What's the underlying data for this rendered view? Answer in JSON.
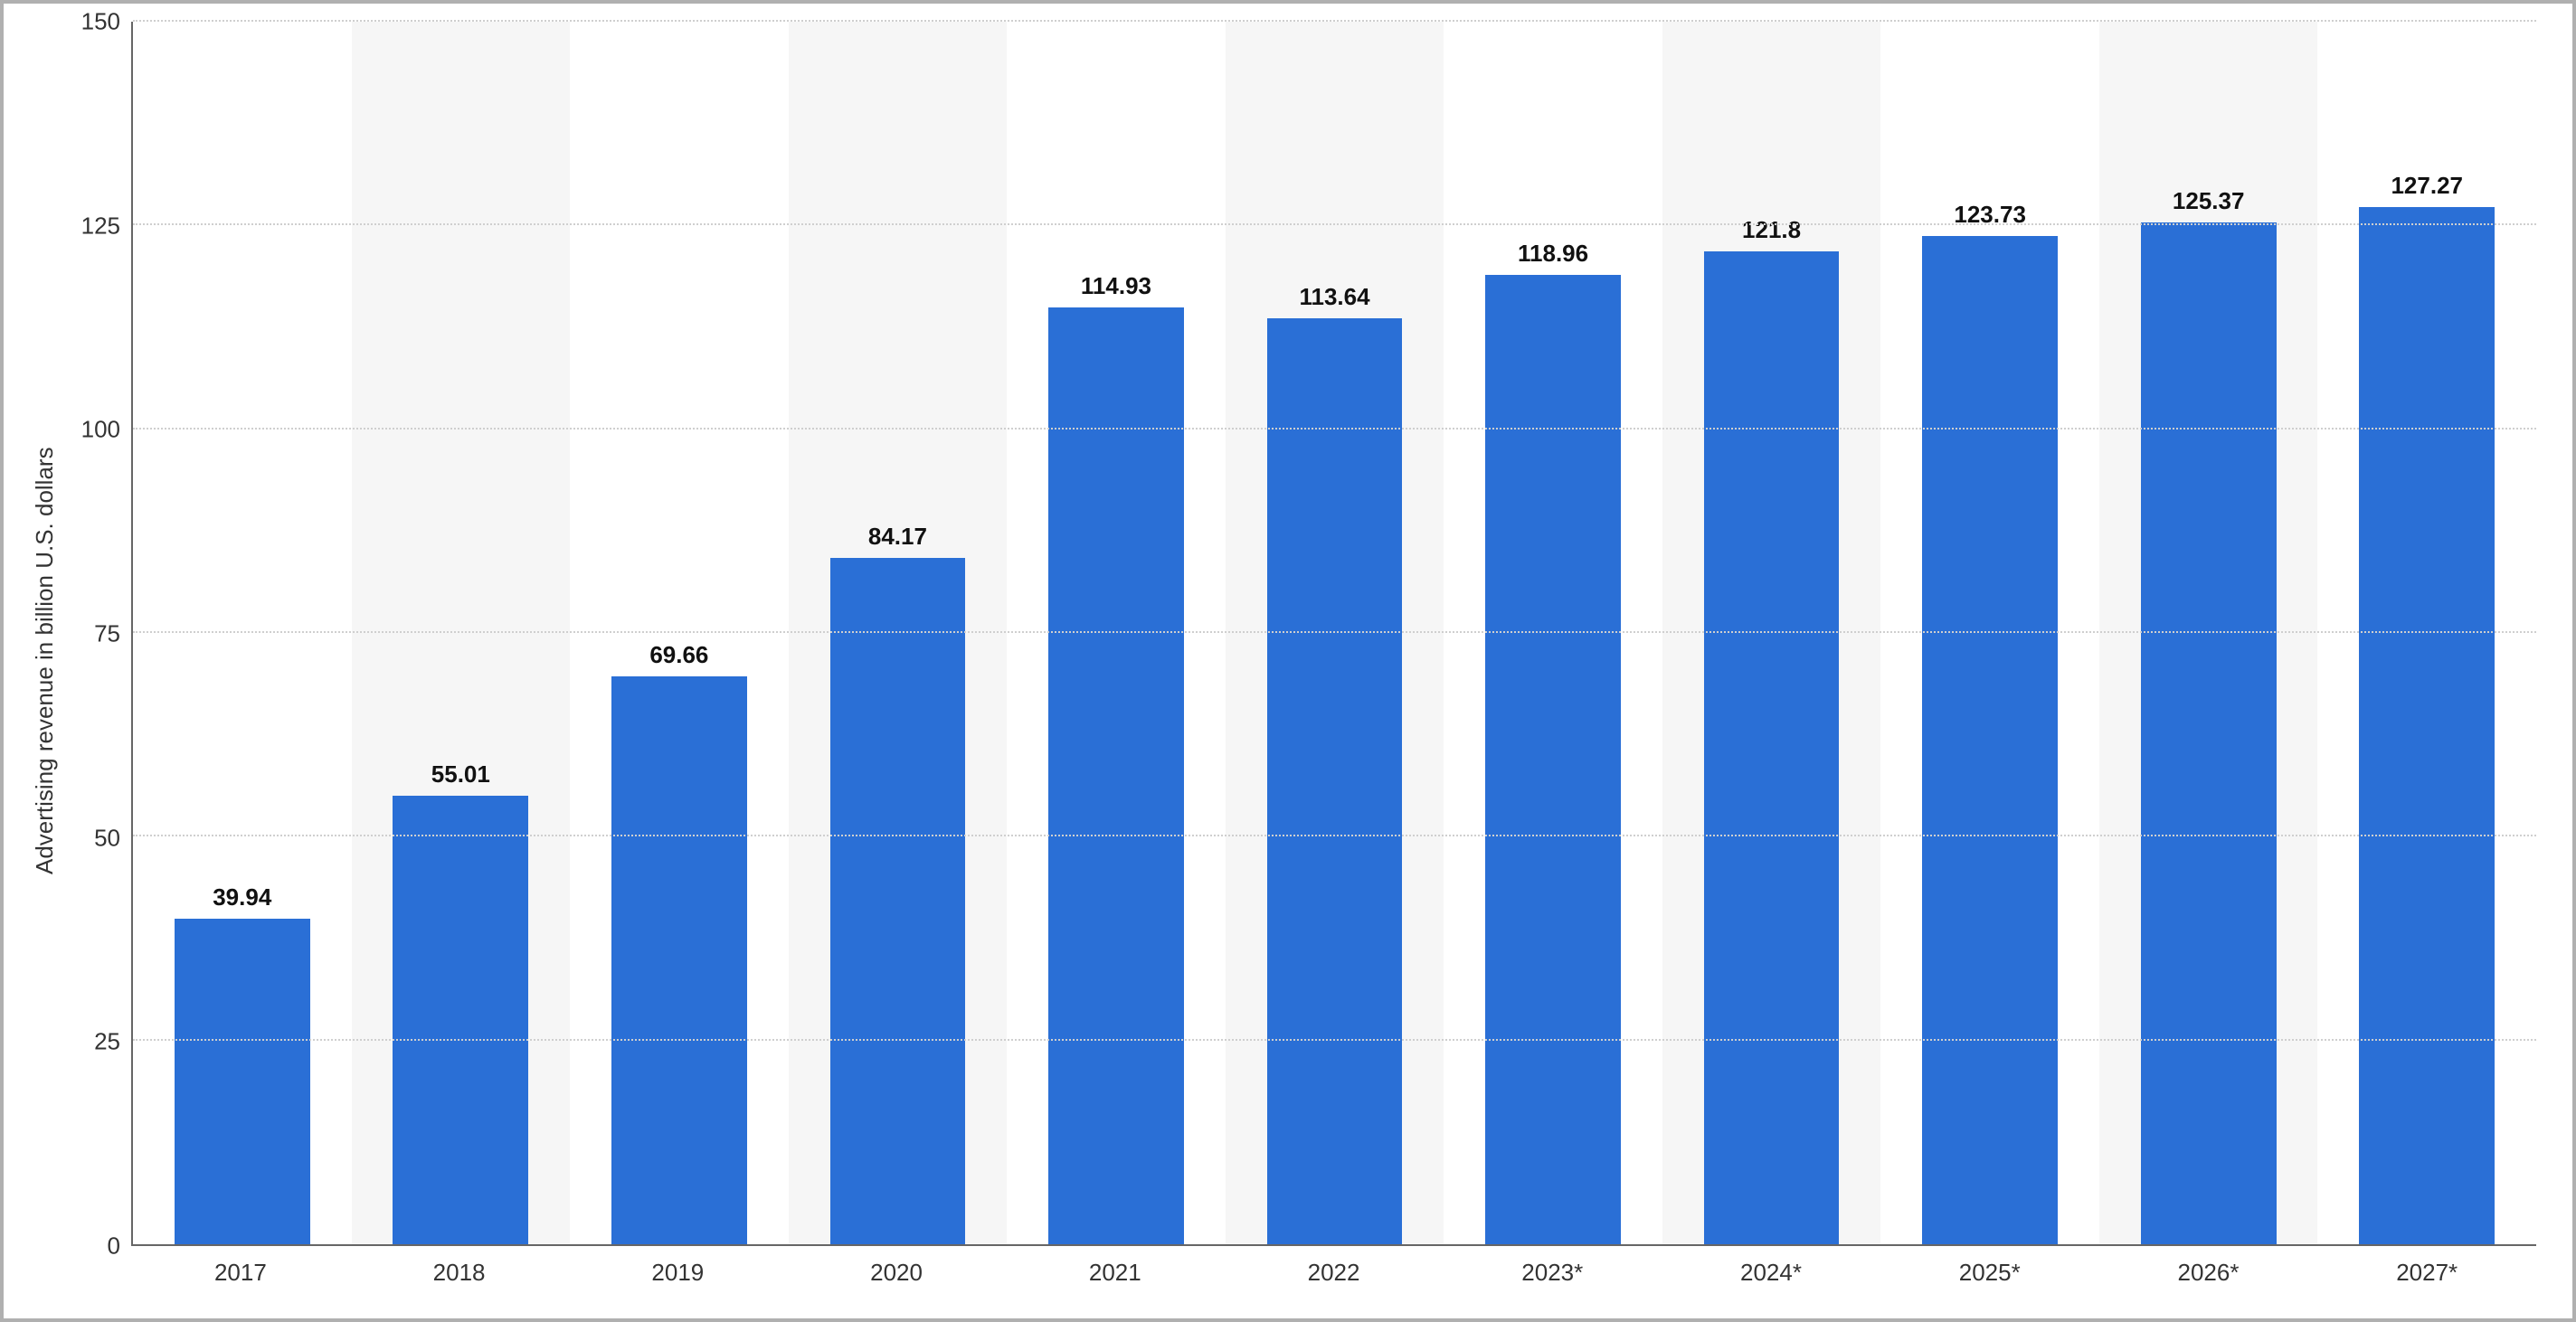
{
  "chart": {
    "type": "bar",
    "y_axis_label": "Advertising revenue in billion U.S. dollars",
    "ylim": [
      0,
      150
    ],
    "ytick_step": 25,
    "yticks": [
      0,
      25,
      50,
      75,
      100,
      125,
      150
    ],
    "categories": [
      "2017",
      "2018",
      "2019",
      "2020",
      "2021",
      "2022",
      "2023*",
      "2024*",
      "2025*",
      "2026*",
      "2027*"
    ],
    "values": [
      39.94,
      55.01,
      69.66,
      84.17,
      114.93,
      113.64,
      118.96,
      121.8,
      123.73,
      125.37,
      127.27
    ],
    "value_labels": [
      "39.94",
      "55.01",
      "69.66",
      "84.17",
      "114.93",
      "113.64",
      "118.96",
      "121.8",
      "123.73",
      "125.37",
      "127.27"
    ],
    "bar_color": "#2a6fd6",
    "background_color": "#ffffff",
    "alt_band_color": "#f6f6f6",
    "grid_color": "#cfcfcf",
    "axis_color": "#666666",
    "text_color": "#333333",
    "label_fontsize": 26,
    "value_label_fontsize": 26,
    "bar_width_ratio": 0.62,
    "frame_border_color": "#b0b0b0"
  }
}
